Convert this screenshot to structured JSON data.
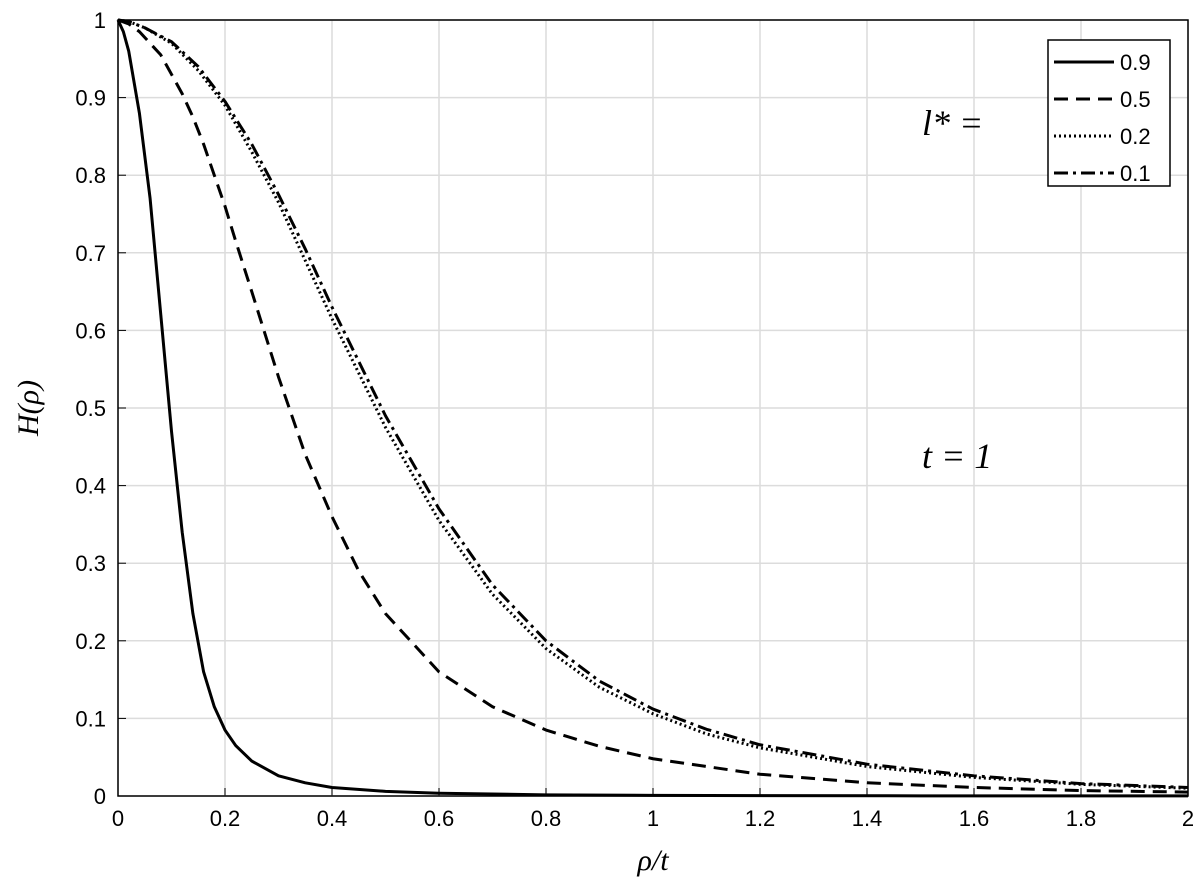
{
  "chart_data": {
    "type": "line",
    "xlabel": "ρ/t",
    "ylabel": "H(ρ)",
    "xlim": [
      0,
      2
    ],
    "ylim": [
      0,
      1
    ],
    "xticks": [
      "0",
      "0.2",
      "0.4",
      "0.6",
      "0.8",
      "1",
      "1.2",
      "1.4",
      "1.6",
      "1.8",
      "2"
    ],
    "yticks": [
      "0",
      "0.1",
      "0.2",
      "0.3",
      "0.4",
      "0.5",
      "0.6",
      "0.7",
      "0.8",
      "0.9",
      "1"
    ],
    "grid": true,
    "legend_position": "top-right",
    "annotations": {
      "legend_prefix": "l* =",
      "param": "t = 1"
    },
    "series": [
      {
        "name": "0.9",
        "style": "solid",
        "x": [
          0,
          0.01,
          0.02,
          0.04,
          0.06,
          0.08,
          0.1,
          0.12,
          0.14,
          0.16,
          0.18,
          0.2,
          0.22,
          0.25,
          0.3,
          0.35,
          0.4,
          0.5,
          0.6,
          0.8,
          1.0,
          1.5,
          2.0
        ],
        "y": [
          1.0,
          0.985,
          0.96,
          0.88,
          0.77,
          0.62,
          0.47,
          0.34,
          0.235,
          0.16,
          0.115,
          0.085,
          0.065,
          0.045,
          0.026,
          0.017,
          0.011,
          0.006,
          0.0035,
          0.0015,
          0.0008,
          0.0002,
          0.0001
        ]
      },
      {
        "name": "0.5",
        "style": "dashed",
        "x": [
          0,
          0.02,
          0.04,
          0.06,
          0.08,
          0.1,
          0.12,
          0.14,
          0.16,
          0.18,
          0.2,
          0.22,
          0.25,
          0.3,
          0.35,
          0.4,
          0.45,
          0.5,
          0.6,
          0.7,
          0.8,
          0.9,
          1.0,
          1.2,
          1.4,
          1.6,
          1.8,
          2.0
        ],
        "y": [
          1.0,
          0.995,
          0.985,
          0.97,
          0.955,
          0.93,
          0.905,
          0.875,
          0.84,
          0.8,
          0.76,
          0.715,
          0.65,
          0.54,
          0.44,
          0.36,
          0.29,
          0.235,
          0.16,
          0.115,
          0.085,
          0.064,
          0.048,
          0.028,
          0.017,
          0.011,
          0.007,
          0.005
        ]
      },
      {
        "name": "0.2",
        "style": "dotted",
        "x": [
          0,
          0.02,
          0.05,
          0.1,
          0.15,
          0.2,
          0.25,
          0.3,
          0.35,
          0.4,
          0.45,
          0.5,
          0.6,
          0.7,
          0.8,
          0.9,
          1.0,
          1.1,
          1.2,
          1.4,
          1.6,
          1.8,
          2.0
        ],
        "y": [
          1.0,
          0.998,
          0.99,
          0.97,
          0.935,
          0.89,
          0.83,
          0.765,
          0.69,
          0.615,
          0.545,
          0.475,
          0.355,
          0.26,
          0.19,
          0.14,
          0.106,
          0.08,
          0.062,
          0.038,
          0.024,
          0.015,
          0.01
        ]
      },
      {
        "name": "0.1",
        "style": "dashdot",
        "x": [
          0,
          0.02,
          0.05,
          0.1,
          0.15,
          0.2,
          0.25,
          0.3,
          0.35,
          0.4,
          0.45,
          0.5,
          0.6,
          0.7,
          0.8,
          0.9,
          1.0,
          1.1,
          1.2,
          1.4,
          1.6,
          1.8,
          2.0
        ],
        "y": [
          1.0,
          0.998,
          0.99,
          0.972,
          0.94,
          0.895,
          0.84,
          0.775,
          0.705,
          0.63,
          0.56,
          0.49,
          0.37,
          0.272,
          0.2,
          0.148,
          0.112,
          0.086,
          0.066,
          0.041,
          0.026,
          0.016,
          0.011
        ]
      }
    ]
  }
}
